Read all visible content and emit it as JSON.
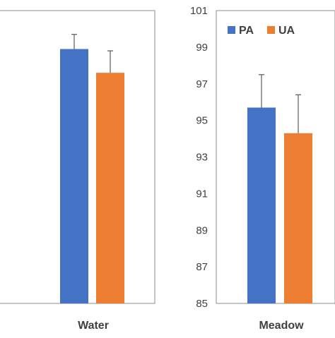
{
  "chart_data": [
    {
      "type": "bar",
      "categories": [
        "Water"
      ],
      "series": [
        {
          "name": "PA",
          "values": [
            98.9
          ],
          "errors": [
            0.8
          ]
        },
        {
          "name": "UA",
          "values": [
            97.6
          ],
          "errors": [
            1.2
          ]
        }
      ],
      "ylim": [
        85,
        101
      ],
      "yticks": [],
      "colors": {
        "PA": "#4472c4",
        "UA": "#ed7d31"
      },
      "legend": "none",
      "grid": false
    },
    {
      "type": "bar",
      "categories": [
        "Meadow"
      ],
      "series": [
        {
          "name": "PA",
          "values": [
            95.7
          ],
          "errors": [
            1.8
          ]
        },
        {
          "name": "UA",
          "values": [
            94.3
          ],
          "errors": [
            2.1
          ]
        }
      ],
      "ylim": [
        85,
        101
      ],
      "yticks": [
        "85",
        "87",
        "89",
        "91",
        "93",
        "95",
        "97",
        "99",
        "101"
      ],
      "colors": {
        "PA": "#4472c4",
        "UA": "#ed7d31"
      },
      "legend": "top-left",
      "legend_entries": [
        "PA",
        "UA"
      ],
      "grid": false
    }
  ]
}
